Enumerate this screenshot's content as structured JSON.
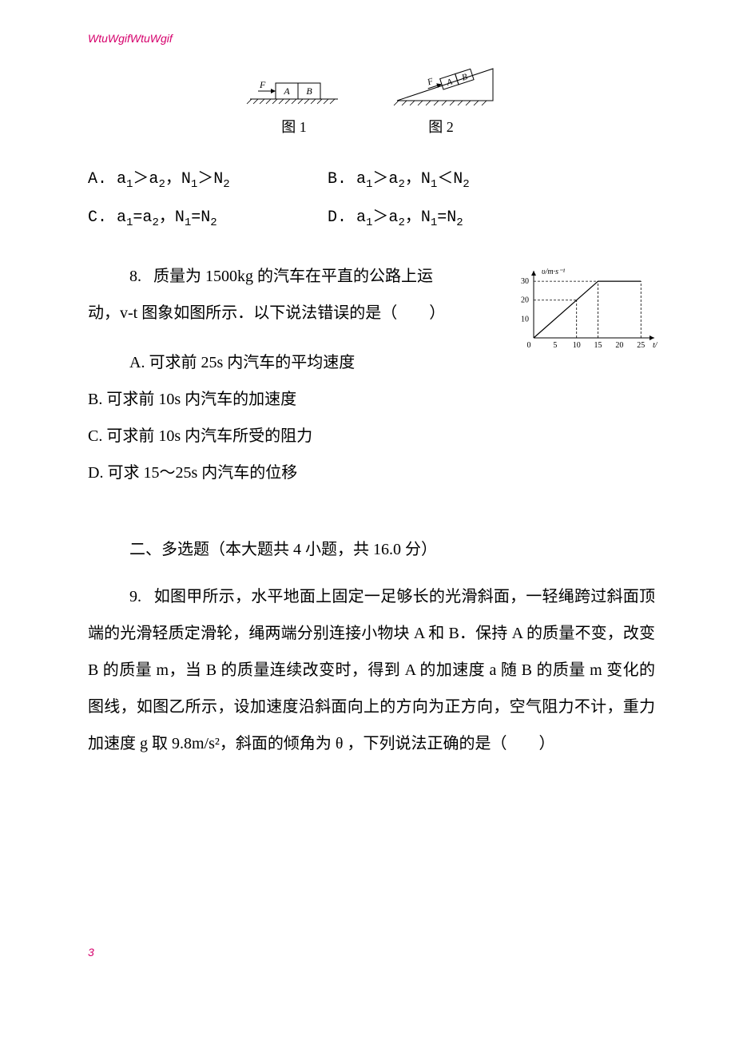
{
  "header": "WtuWgifWtuWgif",
  "figure1": {
    "label": "图 1",
    "block_labels": {
      "force": "F",
      "a": "A",
      "b": "B"
    }
  },
  "figure2": {
    "label": "图 2",
    "block_labels": {
      "force": "F",
      "a": "A",
      "b": "B"
    }
  },
  "q7_options": {
    "A": "A. a₁＞a₂，N₁＞N₂",
    "B": "B. a₁＞a₂，N₁＜N₂",
    "C": "C. a₁=a₂，N₁=N₂",
    "D": "D. a₁＞a₂，N₁=N₂"
  },
  "q8": {
    "num": "8.",
    "line1": "质量为 1500kg 的汽车在平直的公路上运",
    "line2": "动，v-t 图象如图所示．以下说法错误的是（　　）",
    "optA": "A. 可求前 25s 内汽车的平均速度",
    "optB": "B. 可求前 10s 内汽车的加速度",
    "optC": "C. 可求前 10s 内汽车所受的阻力",
    "optD": "D. 可求 15～25s 内汽车的位移"
  },
  "chart": {
    "type": "line",
    "ylabel": "υ/m·s⁻¹",
    "xlabel": "t/",
    "xlim": [
      0,
      27
    ],
    "ylim": [
      0,
      33
    ],
    "xticks": [
      0,
      5,
      10,
      15,
      20,
      25
    ],
    "yticks": [
      10,
      20,
      30
    ],
    "points": [
      [
        0,
        0
      ],
      [
        15,
        30
      ],
      [
        25,
        30
      ]
    ],
    "dash_guides": [
      {
        "from": [
          0,
          20
        ],
        "to": [
          10,
          20
        ],
        "axis": "h"
      },
      {
        "from": [
          10,
          0
        ],
        "to": [
          10,
          20
        ],
        "axis": "v"
      },
      {
        "from": [
          0,
          30
        ],
        "to": [
          15,
          30
        ],
        "axis": "h"
      },
      {
        "from": [
          15,
          0
        ],
        "to": [
          15,
          30
        ],
        "axis": "v"
      },
      {
        "from": [
          25,
          0
        ],
        "to": [
          25,
          30
        ],
        "axis": "v"
      }
    ],
    "axis_color": "#000000",
    "line_color": "#000000",
    "background_color": "#ffffff",
    "font_size": 10,
    "width": 180,
    "height": 110
  },
  "section2_title": "二、多选题（本大题共 4 小题，共 16.0 分）",
  "q9": {
    "num": "9.",
    "body": "如图甲所示，水平地面上固定一足够长的光滑斜面，一轻绳跨过斜面顶端的光滑轻质定滑轮，绳两端分别连接小物块 A 和 B．保持 A 的质量不变，改变 B 的质量 m，当 B 的质量连续改变时，得到 A 的加速度 a 随 B 的质量 m 变化的图线，如图乙所示，设加速度沿斜面向上的方向为正方向，空气阻力不计，重力加速度 g 取 9.8m/s²，斜面的倾角为 θ ，下列说法正确的是（　　）"
  },
  "footer": "3"
}
